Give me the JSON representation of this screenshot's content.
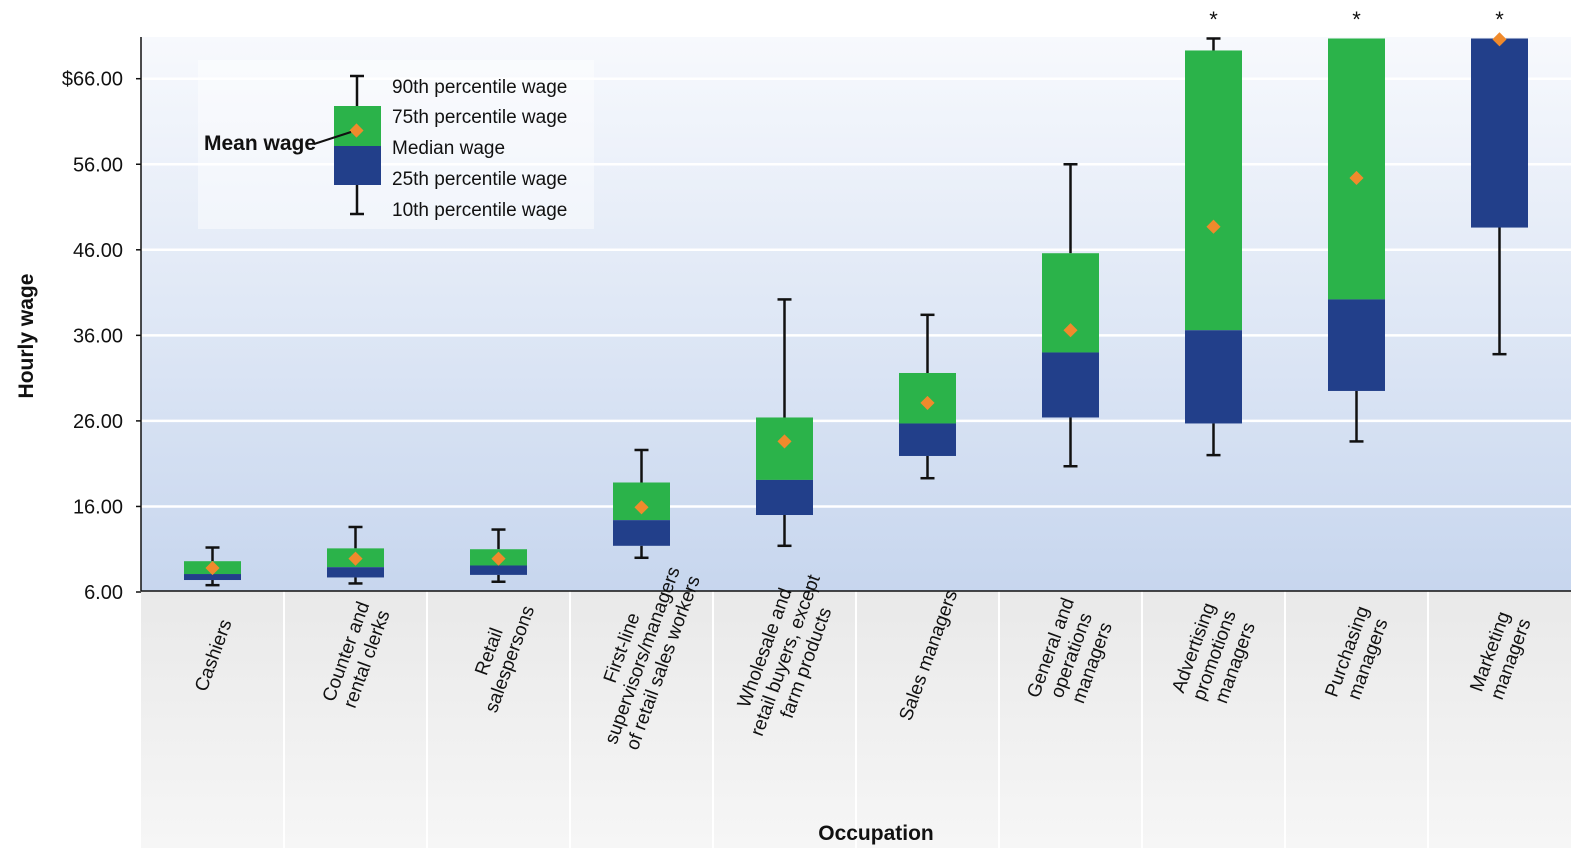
{
  "chart_data": {
    "type": "box",
    "ylabel": "Hourly wage",
    "xlabel": "Occupation",
    "ylim": [
      6,
      71
    ],
    "yticks": [
      "$66.00",
      "56.00",
      "46.00",
      "36.00",
      "26.00",
      "16.00",
      "6.00"
    ],
    "ytick_values": [
      66,
      56,
      46,
      36,
      26,
      16,
      6
    ],
    "grid": true,
    "colors": {
      "upper_box": "#2bb34a",
      "lower_box": "#223f8a",
      "mean_marker": "#f08a2c",
      "whisker": "#111111",
      "plot_bg_top": "#f7f9fd",
      "plot_bg_bottom": "#c7d6ee",
      "label_bg": "#f1f1f1"
    },
    "legend": {
      "placement": "top-left",
      "mean_label": "Mean wage",
      "entries": [
        "90th percentile wage",
        "75th percentile wage",
        "Median wage",
        "25th percentile wage",
        "10th percentile wage"
      ]
    },
    "categories": [
      {
        "label_lines": [
          "Cashiers"
        ],
        "p10": 6.8,
        "p25": 7.4,
        "median": 8.1,
        "p75": 9.6,
        "p90": 11.2,
        "mean": 8.8,
        "star": ""
      },
      {
        "label_lines": [
          "Counter and",
          "rental clerks"
        ],
        "p10": 7.0,
        "p25": 7.7,
        "median": 8.9,
        "p75": 11.1,
        "p90": 13.6,
        "mean": 9.9,
        "star": ""
      },
      {
        "label_lines": [
          "Retail",
          "salespersons"
        ],
        "p10": 7.2,
        "p25": 8.0,
        "median": 9.1,
        "p75": 11.0,
        "p90": 13.3,
        "mean": 9.9,
        "star": ""
      },
      {
        "label_lines": [
          "First-line",
          "supervisors/managers",
          "of retail sales workers"
        ],
        "p10": 10.0,
        "p25": 11.4,
        "median": 14.4,
        "p75": 18.8,
        "p90": 22.6,
        "mean": 15.9,
        "star": ""
      },
      {
        "label_lines": [
          "Wholesale and",
          "retail buyers, except",
          "farm products"
        ],
        "p10": 11.4,
        "p25": 15.0,
        "median": 19.1,
        "p75": 26.4,
        "p90": 40.2,
        "mean": 23.6,
        "star": ""
      },
      {
        "label_lines": [
          "Sales managers"
        ],
        "p10": 19.3,
        "p25": 21.9,
        "median": 25.7,
        "p75": 31.6,
        "p90": 38.4,
        "mean": 28.1,
        "star": ""
      },
      {
        "label_lines": [
          "General and",
          "operations",
          "managers"
        ],
        "p10": 20.7,
        "p25": 26.4,
        "median": 34.0,
        "p75": 45.6,
        "p90": 56.0,
        "mean": 36.6,
        "star": ""
      },
      {
        "label_lines": [
          "Advertising",
          "promotions",
          "managers"
        ],
        "p10": 22.0,
        "p25": 25.7,
        "median": 36.6,
        "p75": 69.3,
        "p90": 70.7,
        "mean": 48.7,
        "star": "*"
      },
      {
        "label_lines": [
          "Purchasing",
          "managers"
        ],
        "p10": 23.6,
        "p25": 29.5,
        "median": 40.2,
        "p75": 70.7,
        "p90": 70.7,
        "mean": 54.4,
        "star": "*"
      },
      {
        "label_lines": [
          "Marketing",
          "managers"
        ],
        "p10": 33.8,
        "p25": 48.6,
        "median": 70.7,
        "p75": 70.7,
        "p90": 70.7,
        "mean": 70.6,
        "star": "*"
      }
    ]
  }
}
